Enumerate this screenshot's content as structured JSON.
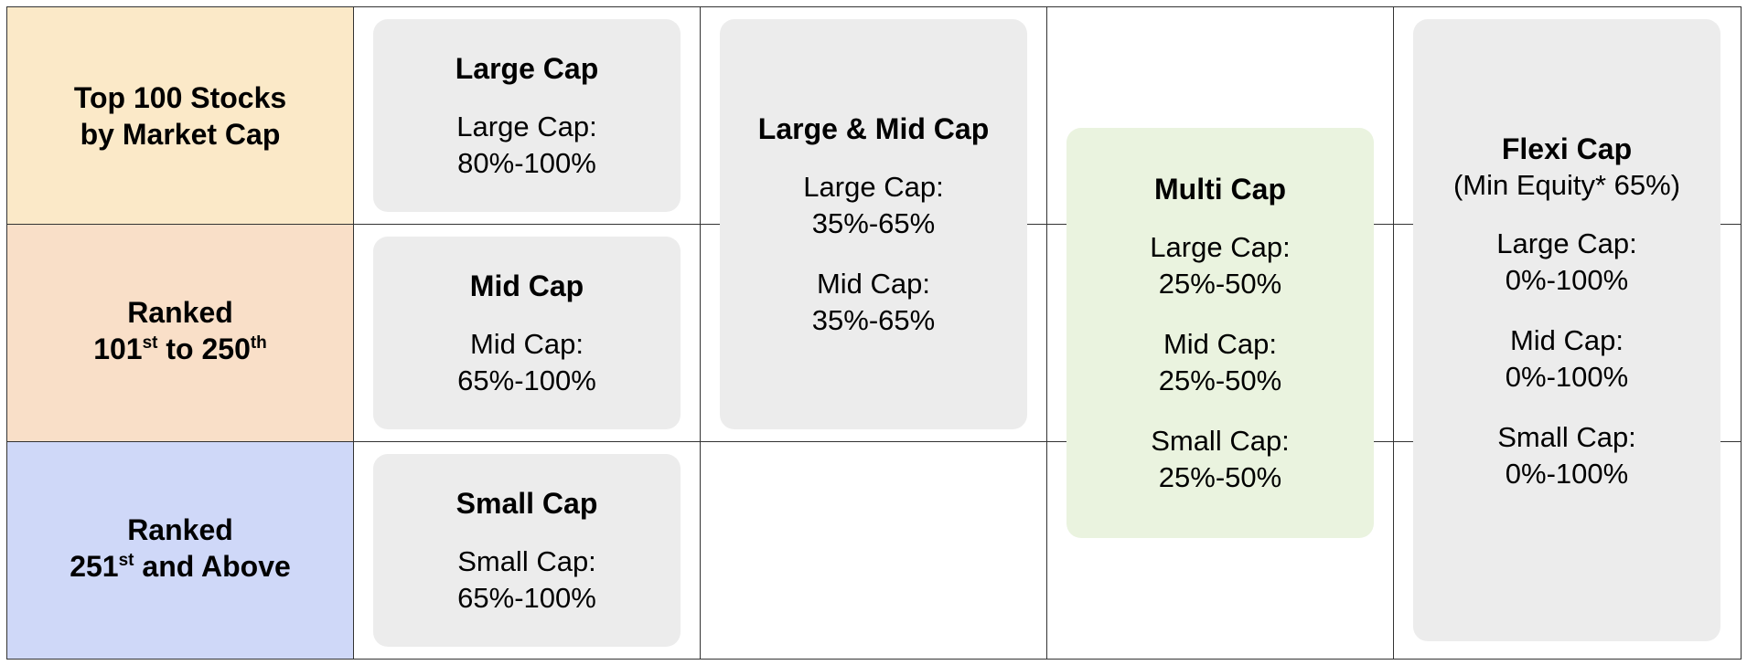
{
  "rows": [
    {
      "line1": "Top 100 Stocks",
      "line2": "by Market Cap",
      "color": "#fbe9c8"
    },
    {
      "line1": "Ranked",
      "line2_num": "101",
      "line2_sup1": "st",
      "line2_mid": " to 250",
      "line2_sup2": "th",
      "color": "#f9dfc8"
    },
    {
      "line1": "Ranked",
      "line2_num": "251",
      "line2_sup1": "st",
      "line2_mid": " and Above",
      "color": "#cfd8f8"
    }
  ],
  "cards": {
    "large_cap": {
      "title": "Large Cap",
      "label": "Large Cap:",
      "range": "80%-100%"
    },
    "mid_cap": {
      "title": "Mid Cap",
      "label": "Mid Cap:",
      "range": "65%-100%"
    },
    "small_cap": {
      "title": "Small Cap",
      "label": "Small Cap:",
      "range": "65%-100%"
    },
    "large_mid_cap": {
      "title": "Large & Mid Cap",
      "large_label": "Large Cap:",
      "large_range": "35%-65%",
      "mid_label": "Mid Cap:",
      "mid_range": "35%-65%"
    },
    "multi_cap": {
      "title": "Multi Cap",
      "large_label": "Large Cap:",
      "large_range": "25%-50%",
      "mid_label": "Mid Cap:",
      "mid_range": "25%-50%",
      "small_label": "Small Cap:",
      "small_range": "25%-50%",
      "color": "#eaf3df"
    },
    "flexi_cap": {
      "title": "Flexi Cap",
      "subtitle": "(Min Equity* 65%)",
      "large_label": "Large Cap:",
      "large_range": "0%-100%",
      "mid_label": "Mid Cap:",
      "mid_range": "0%-100%",
      "small_label": "Small Cap:",
      "small_range": "0%-100%"
    }
  },
  "colors": {
    "card_grey": "#ececec",
    "grid_line": "#333333"
  }
}
